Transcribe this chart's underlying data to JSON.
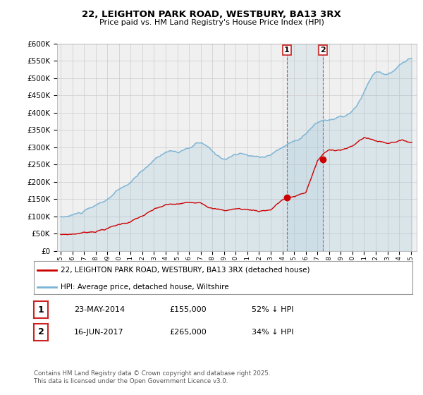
{
  "title": "22, LEIGHTON PARK ROAD, WESTBURY, BA13 3RX",
  "subtitle": "Price paid vs. HM Land Registry's House Price Index (HPI)",
  "legend_entry1": "22, LEIGHTON PARK ROAD, WESTBURY, BA13 3RX (detached house)",
  "legend_entry2": "HPI: Average price, detached house, Wiltshire",
  "transaction1_label": "1",
  "transaction1_date": "23-MAY-2014",
  "transaction1_price": "£155,000",
  "transaction1_hpi": "52% ↓ HPI",
  "transaction2_label": "2",
  "transaction2_date": "16-JUN-2017",
  "transaction2_price": "£265,000",
  "transaction2_hpi": "34% ↓ HPI",
  "footnote": "Contains HM Land Registry data © Crown copyright and database right 2025.\nThis data is licensed under the Open Government Licence v3.0.",
  "hpi_color": "#7ab3d4",
  "price_color": "#cc0000",
  "background_color": "#ffffff",
  "plot_bg_color": "#f0f0f0",
  "ylim": [
    0,
    600000
  ],
  "ytick_step": 50000,
  "marker1_year": 2014.38,
  "marker1_price": 155000,
  "marker2_year": 2017.45,
  "marker2_price": 265000
}
